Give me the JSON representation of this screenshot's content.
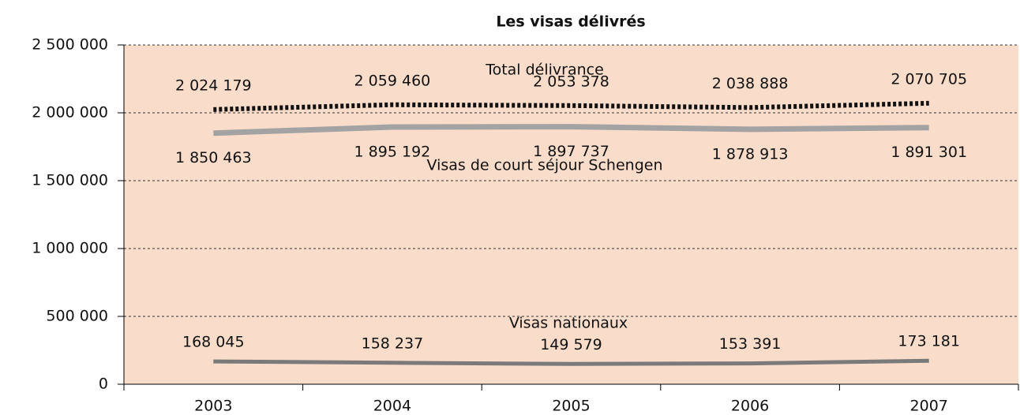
{
  "chart_data": {
    "type": "line",
    "title": "Les visas délivrés",
    "categories": [
      "2003",
      "2004",
      "2005",
      "2006",
      "2007"
    ],
    "series": [
      {
        "name": "Total délivrance",
        "color": "#111111",
        "dashed": true,
        "width": 6,
        "values": [
          2024179,
          2059460,
          2053378,
          2038888,
          2070705
        ],
        "value_labels": [
          "2 024 179",
          "2 059 460",
          "2 053 378",
          "2 038 888",
          "2 070 705"
        ]
      },
      {
        "name": "Visas de court séjour Schengen",
        "color": "#a3a3a3",
        "dashed": false,
        "width": 7,
        "values": [
          1850463,
          1895192,
          1897737,
          1878913,
          1891301
        ],
        "value_labels": [
          "1 850 463",
          "1 895 192",
          "1 897 737",
          "1 878 913",
          "1 891 301"
        ]
      },
      {
        "name": "Visas nationaux",
        "color": "#7a7a7a",
        "dashed": false,
        "width": 5,
        "values": [
          168045,
          158237,
          149579,
          153391,
          173181
        ],
        "value_labels": [
          "168 045",
          "158 237",
          "149 579",
          "153 391",
          "173 181"
        ]
      }
    ],
    "ylim": [
      0,
      2500000
    ],
    "yticks": [
      0,
      {
        "value": 500000,
        "label": "500 000"
      },
      {
        "value": 1000000,
        "label": "1 000 000"
      },
      {
        "value": 1500000,
        "label": "1 500 000"
      },
      {
        "value": 2000000,
        "label": "2 000 000"
      },
      {
        "value": 2500000,
        "label": "2 500 000"
      }
    ],
    "grid": true,
    "background": "#f9dcc9"
  }
}
